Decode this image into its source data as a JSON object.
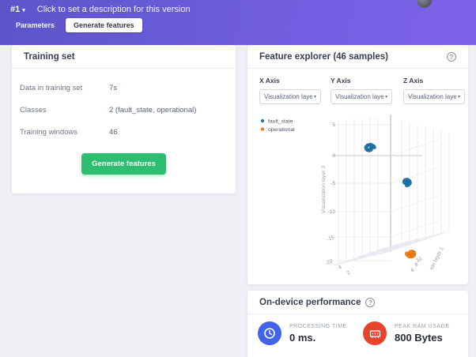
{
  "header": {
    "version": "#1",
    "caret": "▾",
    "description": "Click to set a description for this version",
    "tabs": [
      {
        "label": "Parameters",
        "active": false
      },
      {
        "label": "Generate features",
        "active": true
      }
    ]
  },
  "training_set": {
    "title": "Training set",
    "rows": [
      {
        "label": "Data in training set",
        "value": "7s"
      },
      {
        "label": "Classes",
        "value": "2 (fault_state, operational)"
      },
      {
        "label": "Training windows",
        "value": "46"
      }
    ],
    "button_label": "Generate features"
  },
  "feature_explorer": {
    "title": "Feature explorer (46 samples)",
    "help_icon": "?",
    "axis_selectors": [
      {
        "label": "X Axis",
        "value": "Visualization laye",
        "chevron": "▾"
      },
      {
        "label": "Y Axis",
        "value": "Visualization laye",
        "chevron": "▾"
      },
      {
        "label": "Z Axis",
        "value": "Visualization laye",
        "chevron": "▾"
      }
    ]
  },
  "chart_data": {
    "type": "scatter3d",
    "title": "",
    "legend_position": "top-left",
    "grid": true,
    "legend": [
      {
        "name": "fault_state",
        "color": "#1f77b4"
      },
      {
        "name": "operational",
        "color": "#ff7f0e"
      }
    ],
    "z_axis": {
      "label": "Visualization layer 3",
      "ticks": [
        5,
        0,
        -5,
        -10,
        -15,
        -20
      ],
      "range": [
        -20,
        5
      ]
    },
    "x_axis": {
      "label": "ion layer 1",
      "ticks": [
        10,
        8,
        6
      ]
    },
    "y_axis": {
      "label": "",
      "ticks": [
        4,
        2
      ]
    },
    "clusters": [
      {
        "series": "fault_state",
        "color": "#1f77b4",
        "layer3": 1.2,
        "h_frac": 0.23,
        "spread": 6
      },
      {
        "series": "fault_state",
        "color": "#1f77b4",
        "layer3": -4.8,
        "h_frac": 0.54,
        "spread": 5
      },
      {
        "series": "operational",
        "color": "#ff7f0e",
        "layer3": -18.5,
        "h_frac": 0.58,
        "spread": 5.5
      }
    ]
  },
  "performance": {
    "title": "On-device performance",
    "help_icon": "?",
    "metrics": [
      {
        "label": "PROCESSING TIME",
        "value": "0 ms.",
        "icon": "clock-icon",
        "color": "#4263eb"
      },
      {
        "label": "PEAK RAM USAGE",
        "value": "800 Bytes",
        "icon": "ram-icon",
        "color": "#e8432c"
      }
    ]
  },
  "theme": {
    "banner_gradient_start": "#5b54c9",
    "banner_gradient_end": "#7e63ea",
    "button_green": "#2dbe70",
    "background": "#eef0f6",
    "card": "#ffffff"
  }
}
